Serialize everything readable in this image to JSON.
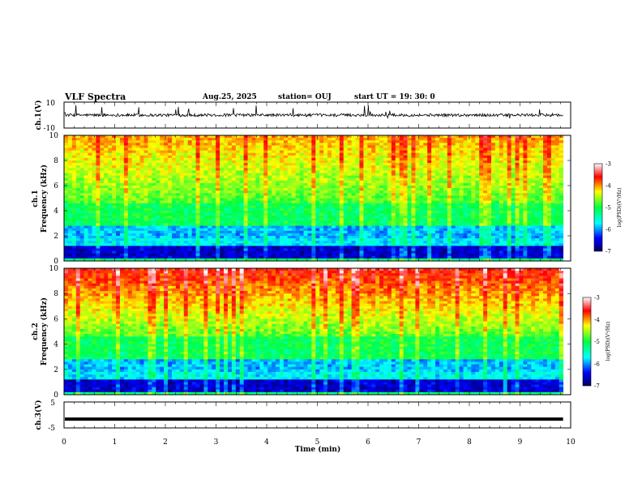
{
  "header": {
    "title": "VLF Spectra",
    "date": "Aug.25, 2025",
    "station": "station= OUJ",
    "start": "start  UT =   19: 30: 0"
  },
  "chart_data": {
    "type": "heatmap",
    "x": {
      "label": "Time  (min)",
      "range": [
        0,
        10
      ],
      "ticks": [
        "0",
        "1",
        "2",
        "3",
        "4",
        "5",
        "6",
        "7",
        "8",
        "9",
        "10"
      ]
    },
    "panels": [
      {
        "id": "ch1-waveform",
        "type": "line",
        "ylabel": "ch.1(V)",
        "yrange": [
          -10,
          10
        ],
        "ticks": [
          "10",
          "-10"
        ],
        "baseline": 0
      },
      {
        "id": "ch1-spectrogram",
        "type": "heatmap",
        "ylabel_line1": "ch.1",
        "ylabel_line2": "Frequency  (kHz)",
        "yrange": [
          0,
          10
        ],
        "ticks": [
          "0",
          "2",
          "4",
          "6",
          "8",
          "10"
        ],
        "colorbar_label": "log(PSD)(V²/Hz)",
        "colorbar_ticks": [
          "-3",
          "-4",
          "-5",
          "-6",
          "-7"
        ],
        "crange": [
          -7,
          -3
        ]
      },
      {
        "id": "ch2-spectrogram",
        "type": "heatmap",
        "ylabel_line1": "ch.2",
        "ylabel_line2": "Frequency  (kHz)",
        "yrange": [
          0,
          10
        ],
        "ticks": [
          "0",
          "2",
          "4",
          "6",
          "8",
          "10"
        ],
        "colorbar_label": "log(PSD)(V²/Hz)",
        "colorbar_ticks": [
          "-3",
          "-4",
          "-5",
          "-6",
          "-7"
        ],
        "crange": [
          -7,
          -3
        ]
      },
      {
        "id": "ch3-waveform",
        "type": "line",
        "ylabel": "ch.3(V)",
        "yrange": [
          -5,
          5
        ],
        "ticks": [
          "5",
          "-5"
        ],
        "baseline": -1.6
      }
    ],
    "data_end_min": 9.85
  }
}
